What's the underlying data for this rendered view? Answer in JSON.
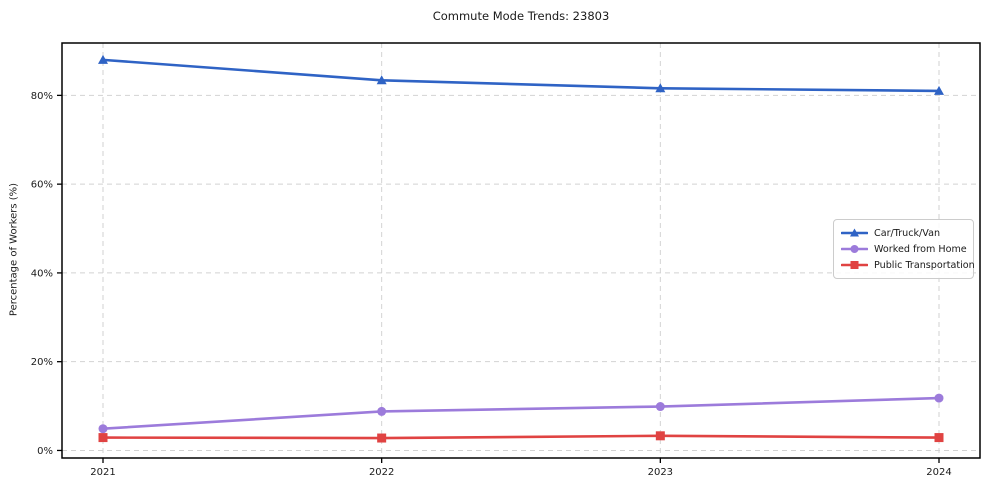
{
  "chart_data": {
    "type": "line",
    "title": "Commute Mode Trends: 23803",
    "xlabel": "",
    "ylabel": "Percentage of Workers (%)",
    "categories": [
      "2021",
      "2022",
      "2023",
      "2024"
    ],
    "series": [
      {
        "name": "Car/Truck/Van",
        "color": "#2f63c5",
        "marker": "triangle",
        "values": [
          88.0,
          83.4,
          81.6,
          81.0
        ]
      },
      {
        "name": "Worked from Home",
        "color": "#9c7bdb",
        "marker": "circle",
        "values": [
          4.9,
          8.8,
          9.9,
          11.8
        ]
      },
      {
        "name": "Public Transportation",
        "color": "#e04342",
        "marker": "square",
        "values": [
          2.9,
          2.8,
          3.3,
          2.9
        ]
      }
    ],
    "yticks": [
      {
        "value": 0,
        "label": "0%"
      },
      {
        "value": 20,
        "label": "20%"
      },
      {
        "value": 40,
        "label": "40%"
      },
      {
        "value": 60,
        "label": "60%"
      },
      {
        "value": 80,
        "label": "80%"
      }
    ],
    "ylim": [
      -1.7,
      91.8
    ],
    "grid": {
      "show": true,
      "dashed": true,
      "color": "#d2d2d2",
      "horizontal": true,
      "vertical": true
    },
    "legend_position": "center-right",
    "spine_color": "#000000",
    "tick_label_color": "#1a1a1a"
  }
}
